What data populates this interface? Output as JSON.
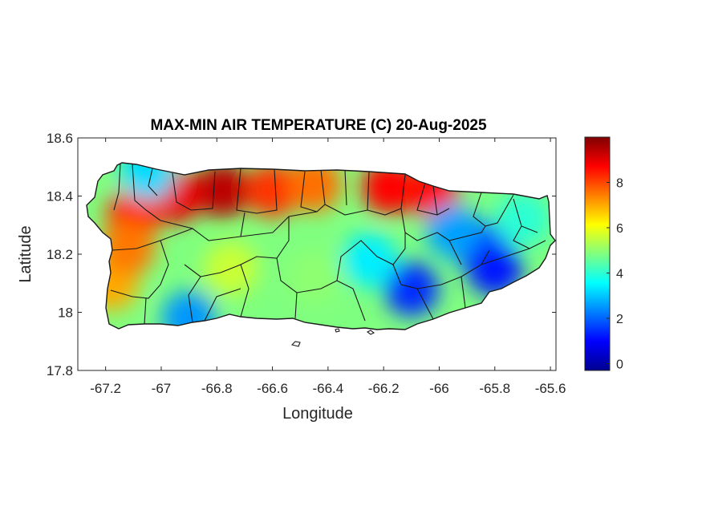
{
  "chart_data": {
    "type": "heatmap",
    "title": "MAX-MIN AIR TEMPERATURE (C) 20-Aug-2025",
    "xlabel": "Longitude",
    "ylabel": "Latitude",
    "xlim": [
      -67.3,
      -65.58
    ],
    "ylim": [
      17.8,
      18.6
    ],
    "x_ticks": [
      -67.2,
      -67,
      -66.8,
      -66.6,
      -66.4,
      -66.2,
      -66,
      -65.8,
      -65.6
    ],
    "x_tick_labels": [
      "-67.2",
      "-67",
      "-66.8",
      "-66.6",
      "-66.4",
      "-66.2",
      "-66",
      "-65.8",
      "-65.6"
    ],
    "y_ticks": [
      17.8,
      18,
      18.2,
      18.4,
      18.6
    ],
    "y_tick_labels": [
      "17.8",
      "18",
      "18.2",
      "18.4",
      "18.6"
    ],
    "colorbar": {
      "colormap": "jet",
      "range": [
        -0.3,
        10
      ],
      "ticks": [
        0,
        2,
        4,
        6,
        8
      ],
      "tick_labels": [
        "0",
        "2",
        "4",
        "6",
        "8"
      ]
    },
    "grid": false,
    "field_hotspots": [
      {
        "lon": -66.78,
        "lat": 18.42,
        "value": 9.4
      },
      {
        "lon": -66.95,
        "lat": 18.4,
        "value": 8.9
      },
      {
        "lon": -67.1,
        "lat": 18.33,
        "value": 8.3
      },
      {
        "lon": -66.6,
        "lat": 18.42,
        "value": 8.2
      },
      {
        "lon": -66.45,
        "lat": 18.44,
        "value": 7.6
      },
      {
        "lon": -66.18,
        "lat": 18.43,
        "value": 8.7
      },
      {
        "lon": -66.03,
        "lat": 18.42,
        "value": 8.6
      },
      {
        "lon": -67.18,
        "lat": 18.1,
        "value": 7.0
      },
      {
        "lon": -67.12,
        "lat": 18.22,
        "value": 7.5
      },
      {
        "lon": -66.45,
        "lat": 18.12,
        "value": 5.0
      },
      {
        "lon": -66.75,
        "lat": 18.15,
        "value": 5.6
      },
      {
        "lon": -66.1,
        "lat": 18.08,
        "value": 1.4
      },
      {
        "lon": -65.85,
        "lat": 18.22,
        "value": 1.8
      },
      {
        "lon": -65.95,
        "lat": 18.28,
        "value": 2.6
      },
      {
        "lon": -65.8,
        "lat": 18.15,
        "value": 1.2
      },
      {
        "lon": -66.25,
        "lat": 18.18,
        "value": 3.4
      },
      {
        "lon": -67.05,
        "lat": 18.48,
        "value": 3.2
      },
      {
        "lon": -65.7,
        "lat": 18.32,
        "value": 4.0
      },
      {
        "lon": -66.9,
        "lat": 17.98,
        "value": 2.5
      }
    ]
  }
}
